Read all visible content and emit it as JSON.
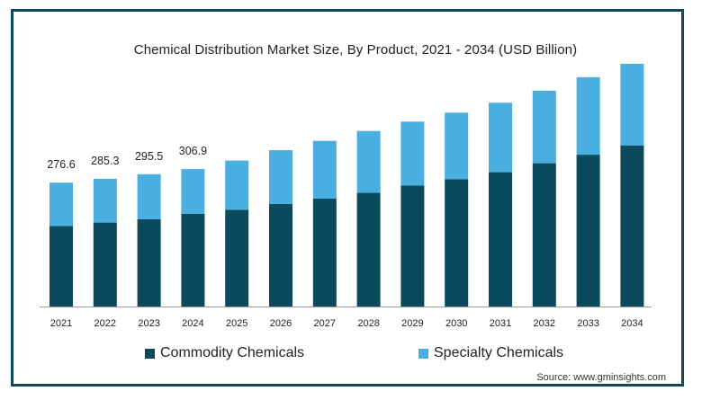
{
  "colors": {
    "frame": "#0f4a5a",
    "commodity": "#0b4a5c",
    "specialty": "#49aee0",
    "axis": "#9a9a9a",
    "text": "#222222"
  },
  "chart_data": {
    "type": "bar",
    "stacked": true,
    "title": "Chemical Distribution  Market Size, By Product, 2021 - 2034 (USD Billion)",
    "categories": [
      "2021",
      "2022",
      "2023",
      "2024",
      "2025",
      "2026",
      "2027",
      "2028",
      "2029",
      "2030",
      "2031",
      "2032",
      "2033",
      "2034"
    ],
    "series": [
      {
        "name": "Commodity Chemicals",
        "color": "#0b4a5c",
        "values": [
          180.0,
          187.5,
          195.0,
          207.0,
          216.0,
          229.0,
          241.0,
          254.0,
          270.0,
          284.0,
          300.0,
          320.0,
          339.0,
          360.0
        ]
      },
      {
        "name": "Specialty Chemicals",
        "color": "#49aee0",
        "values": [
          96.6,
          97.8,
          100.5,
          99.9,
          110.0,
          120.0,
          129.0,
          138.0,
          143.0,
          149.0,
          155.0,
          162.0,
          173.0,
          182.0
        ]
      }
    ],
    "totals_labels": [
      "276.6",
      "285.3",
      "295.5",
      "306.9"
    ],
    "xlabel": "",
    "ylabel": "",
    "ylim": [
      0,
      542
    ],
    "grid": false,
    "legend_position": "bottom"
  },
  "legend": {
    "commodity_label": "Commodity Chemicals",
    "specialty_label": "Specialty Chemicals"
  },
  "source": "Source: www.gminsights.com"
}
